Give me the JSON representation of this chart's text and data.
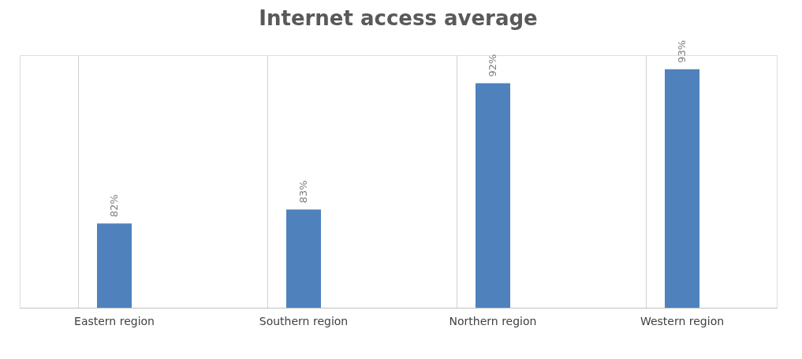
{
  "chart_data": {
    "type": "bar",
    "title": "Internet access average",
    "categories": [
      "Eastern region",
      "Southern region",
      "Northern region",
      "Western region"
    ],
    "values": [
      82,
      83,
      92,
      93
    ],
    "value_labels": [
      "82%",
      "83%",
      "92%",
      "93%"
    ],
    "color": "#4f81bd",
    "ylim": [
      76,
      94
    ],
    "tick_labels": "x",
    "grid": "x"
  }
}
